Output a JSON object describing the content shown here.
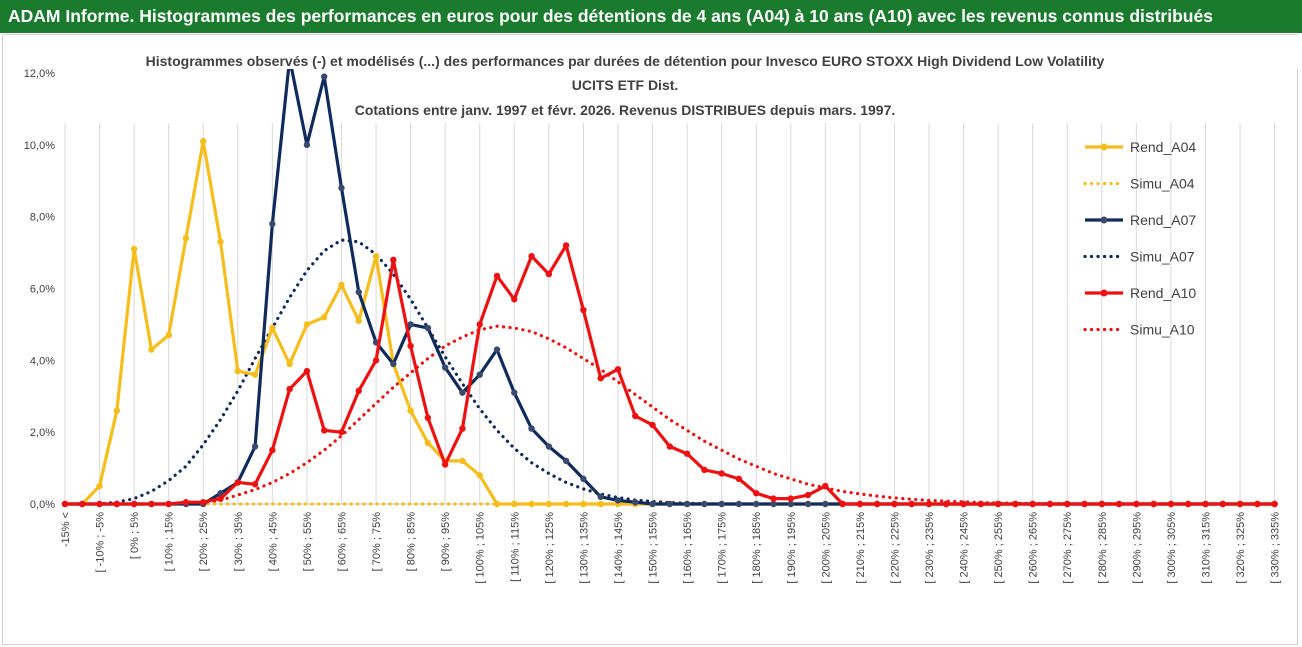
{
  "header": {
    "title": "ADAM Informe. Histogrammes des performances en euros pour des détentions de 4 ans (A04) à 10 ans (A10) avec les revenus connus distribués"
  },
  "colors": {
    "header_bg": "#1a7a2d",
    "A04": "#f5be1c",
    "A07": "#102a5c",
    "A10": "#ee1111",
    "A07_marker": "#3a4a6e"
  },
  "chart_data": {
    "type": "line",
    "title_lines": [
      "Histogrammes observés (-) et modélisés (...) des performances par durées de détention pour Invesco EURO STOXX High Dividend Low Volatility",
      "UCITS ETF Dist.",
      "Cotations entre janv. 1997 et févr. 2026. Revenus DISTRIBUES depuis mars. 1997."
    ],
    "y_ticks": [
      "0,0%",
      "2,0%",
      "4,0%",
      "6,0%",
      "8,0%",
      "10,0%",
      "12,0%"
    ],
    "ylim": [
      0,
      12
    ],
    "grid": "vertical",
    "legend_position": "right",
    "categories": [
      "-15% <",
      "[-15% ; -10%",
      "[ -10% ; -5%",
      "[-5% ; 0%",
      "[ 0% ; 5%",
      "[5% ; 10%",
      "[ 10% ; 15%",
      "[15% ; 20%",
      "[ 20% ; 25%",
      "[25% ; 30%",
      "[ 30% ; 35%",
      "[35% ; 40%",
      "[ 40% ; 45%",
      "[45% ; 50%",
      "[ 50% ; 55%",
      "[55% ; 60%",
      "[ 60% ; 65%",
      "[65% ; 70%",
      "[ 70% ; 75%",
      "[75% ; 80%",
      "[ 80% ; 85%",
      "[85% ; 90%",
      "[ 90% ; 95%",
      "[95% ; 100%",
      "[ 100% ; 105%",
      "[105% ; 110%",
      "[ 110% ; 115%",
      "[115% ; 120%",
      "[ 120% ; 125%",
      "[125% ; 130%",
      "[ 130% ; 135%",
      "[135% ; 140%",
      "[ 140% ; 145%",
      "[145% ; 150%",
      "[ 150% ; 155%",
      "[155% ; 160%",
      "[ 160% ; 165%",
      "[165% ; 170%",
      "[ 170% ; 175%",
      "[175% ; 180%",
      "[ 180% ; 185%",
      "[185% ; 190%",
      "[ 190% ; 195%",
      "[195% ; 200%",
      "[ 200% ; 205%",
      "[205% ; 210%",
      "[ 210% ; 215%",
      "[215% ; 220%",
      "[ 220% ; 225%",
      "[225% ; 230%",
      "[ 230% ; 235%",
      "[235% ; 240%",
      "[ 240% ; 245%",
      "[245% ; 250%",
      "[ 250% ; 255%",
      "[255% ; 260%",
      "[ 260% ; 265%",
      "[265% ; 270%",
      "[ 270% ; 275%",
      "[275% ; 280%",
      "[ 280% ; 285%",
      "[285% ; 290%",
      "[ 290% ; 295%",
      "[295% ; 300%",
      "[ 300% ; 305%",
      "[305% ; 310%",
      "[ 310% ; 315%",
      "[315% ; 320%",
      "[ 320% ; 325%",
      "[325% ; 330%",
      "[ 330% ; 335%"
    ],
    "category_label_every": 2,
    "series": [
      {
        "name": "Rend_A04",
        "style": "solid",
        "color": "#f5be1c",
        "values": [
          0,
          0,
          0.5,
          2.6,
          7.1,
          4.3,
          4.7,
          7.4,
          10.1,
          7.3,
          3.7,
          3.6,
          4.9,
          3.9,
          5.0,
          5.2,
          6.1,
          5.1,
          6.9,
          3.9,
          2.6,
          1.7,
          1.2,
          1.2,
          0.8,
          0,
          0,
          0,
          0,
          0,
          0,
          0,
          0,
          0,
          0,
          0,
          0,
          0,
          0,
          0,
          0,
          0,
          0,
          0,
          0,
          0,
          0,
          0,
          0,
          0,
          0,
          0,
          0,
          0,
          0,
          0,
          0,
          0,
          0,
          0,
          0,
          0,
          0,
          0,
          0,
          0,
          0,
          0,
          0,
          0,
          0
        ]
      },
      {
        "name": "Simu_A04",
        "style": "dotted",
        "color": "#f5be1c",
        "values": [
          0,
          0,
          0,
          0,
          0,
          0,
          0,
          0,
          0,
          0,
          0,
          0,
          0,
          0,
          0,
          0,
          0,
          0,
          0,
          0,
          0,
          0,
          0,
          0,
          0,
          0,
          0,
          0,
          0,
          0,
          0,
          0,
          0,
          0,
          0,
          0,
          0,
          0,
          0,
          0,
          0,
          0,
          0,
          0,
          0,
          0,
          0,
          0,
          0,
          0,
          0,
          0,
          0,
          0,
          0,
          0,
          0,
          0,
          0,
          0,
          0,
          0,
          0,
          0,
          0,
          0,
          0,
          0,
          0,
          0,
          0
        ]
      },
      {
        "name": "Rend_A07",
        "style": "solid",
        "color": "#102a5c",
        "values": [
          0,
          0,
          0,
          0,
          0,
          0,
          0,
          0,
          0,
          0.3,
          0.6,
          1.6,
          7.8,
          12.4,
          10.0,
          11.9,
          8.8,
          5.9,
          4.5,
          3.9,
          5.0,
          4.9,
          3.8,
          3.1,
          3.6,
          4.3,
          3.1,
          2.1,
          1.6,
          1.2,
          0.7,
          0.2,
          0.1,
          0.05,
          0,
          0,
          0,
          0,
          0,
          0,
          0,
          0,
          0,
          0,
          0,
          0,
          0,
          0,
          0,
          0,
          0,
          0,
          0,
          0,
          0,
          0,
          0,
          0,
          0,
          0,
          0,
          0,
          0,
          0,
          0,
          0,
          0,
          0,
          0,
          0,
          0
        ]
      },
      {
        "name": "Simu_A07",
        "style": "dotted",
        "color": "#102a5c",
        "values": [
          0,
          0,
          0,
          0.05,
          0.15,
          0.35,
          0.65,
          1.05,
          1.65,
          2.35,
          3.15,
          4.05,
          4.9,
          5.75,
          6.5,
          7.05,
          7.35,
          7.3,
          6.95,
          6.4,
          5.7,
          4.9,
          4.1,
          3.35,
          2.65,
          2.05,
          1.55,
          1.15,
          0.85,
          0.6,
          0.42,
          0.28,
          0.18,
          0.11,
          0.07,
          0.04,
          0.02,
          0.01,
          0,
          0,
          0,
          0,
          0,
          0,
          0,
          0,
          0,
          0,
          0,
          0,
          0,
          0,
          0,
          0,
          0,
          0,
          0,
          0,
          0,
          0,
          0,
          0,
          0,
          0,
          0,
          0,
          0,
          0,
          0,
          0,
          0
        ]
      },
      {
        "name": "Rend_A10",
        "style": "solid",
        "color": "#ee1111",
        "values": [
          0,
          0,
          0,
          0,
          0,
          0,
          0,
          0.05,
          0.05,
          0.15,
          0.6,
          0.55,
          1.5,
          3.2,
          3.7,
          2.05,
          2.0,
          3.15,
          4.0,
          6.8,
          4.4,
          2.4,
          1.1,
          2.1,
          5.0,
          6.35,
          5.7,
          6.9,
          6.4,
          7.2,
          5.4,
          3.5,
          3.75,
          2.45,
          2.2,
          1.6,
          1.4,
          0.95,
          0.85,
          0.7,
          0.3,
          0.15,
          0.15,
          0.25,
          0.5,
          0,
          0,
          0,
          0,
          0,
          0,
          0,
          0,
          0,
          0,
          0,
          0,
          0,
          0,
          0,
          0,
          0,
          0,
          0,
          0,
          0,
          0,
          0,
          0,
          0,
          0
        ]
      },
      {
        "name": "Simu_A10",
        "style": "dotted",
        "color": "#ee1111",
        "values": [
          0,
          0,
          0,
          0,
          0,
          0,
          0,
          0,
          0.05,
          0.1,
          0.25,
          0.4,
          0.6,
          0.85,
          1.15,
          1.5,
          1.9,
          2.35,
          2.8,
          3.25,
          3.65,
          4.05,
          4.4,
          4.65,
          4.85,
          4.95,
          4.9,
          4.8,
          4.6,
          4.35,
          4.05,
          3.75,
          3.4,
          3.05,
          2.7,
          2.35,
          2.05,
          1.75,
          1.5,
          1.25,
          1.05,
          0.85,
          0.7,
          0.55,
          0.45,
          0.35,
          0.28,
          0.22,
          0.17,
          0.13,
          0.1,
          0.08,
          0.06,
          0.04,
          0.03,
          0.02,
          0.01,
          0.01,
          0,
          0,
          0,
          0,
          0,
          0,
          0,
          0,
          0,
          0,
          0,
          0,
          0
        ]
      }
    ]
  }
}
